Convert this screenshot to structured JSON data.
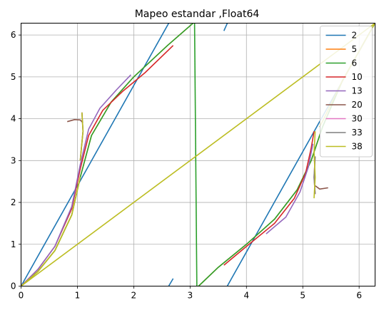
{
  "chart_data": {
    "type": "line",
    "title": "Mapeo estandar  ,Float64",
    "xlabel": "",
    "ylabel": "",
    "xlim": [
      0,
      6.2832
    ],
    "ylim": [
      0,
      6.2832
    ],
    "xticks": [
      "0",
      "1",
      "2",
      "3",
      "4",
      "5",
      "6"
    ],
    "yticks": [
      "0",
      "1",
      "2",
      "3",
      "4",
      "5",
      "6"
    ],
    "grid": true,
    "legend_position": "upper right",
    "series": [
      {
        "name": "2",
        "color": "#1f77b4",
        "segments": [
          [
            [
              0,
              0
            ],
            [
              2.62,
              6.28
            ]
          ],
          [
            [
              2.62,
              0
            ],
            [
              2.7,
              0.18
            ]
          ],
          [
            [
              3.6,
              6.1
            ],
            [
              3.66,
              6.28
            ]
          ],
          [
            [
              3.66,
              0
            ],
            [
              6.28,
              6.28
            ]
          ]
        ]
      },
      {
        "name": "5",
        "color": "#ff7f0e",
        "segments": [
          [
            [
              0,
              0
            ],
            [
              0.3,
              0.35
            ],
            [
              0.6,
              0.85
            ],
            [
              0.9,
              1.7
            ],
            [
              1.05,
              2.6
            ],
            [
              1.25,
              3.6
            ],
            [
              1.6,
              4.4
            ],
            [
              2.0,
              5.0
            ],
            [
              2.6,
              5.75
            ],
            [
              3.05,
              6.28
            ]
          ],
          [
            [
              3.15,
              0
            ],
            [
              3.5,
              0.45
            ],
            [
              4.0,
              1.0
            ],
            [
              4.5,
              1.6
            ],
            [
              4.9,
              2.3
            ],
            [
              5.15,
              3.0
            ],
            [
              5.35,
              3.8
            ],
            [
              5.7,
              4.9
            ],
            [
              6.28,
              6.28
            ]
          ]
        ]
      },
      {
        "name": "6",
        "color": "#2ca02c",
        "segments": [
          [
            [
              0,
              0
            ],
            [
              0.3,
              0.35
            ],
            [
              0.6,
              0.85
            ],
            [
              0.9,
              1.7
            ],
            [
              1.05,
              2.6
            ],
            [
              1.25,
              3.6
            ],
            [
              1.6,
              4.4
            ],
            [
              2.0,
              5.0
            ],
            [
              2.6,
              5.75
            ],
            [
              3.05,
              6.28
            ]
          ],
          [
            [
              3.08,
              6.28
            ],
            [
              3.12,
              0
            ]
          ],
          [
            [
              3.15,
              0
            ],
            [
              3.5,
              0.45
            ],
            [
              4.0,
              1.0
            ],
            [
              4.5,
              1.6
            ],
            [
              4.9,
              2.3
            ],
            [
              5.15,
              3.0
            ],
            [
              5.35,
              3.8
            ],
            [
              5.7,
              4.9
            ],
            [
              6.28,
              6.28
            ]
          ]
        ]
      },
      {
        "name": "10",
        "color": "#d62728",
        "segments": [
          [
            [
              0,
              0
            ],
            [
              0.3,
              0.4
            ],
            [
              0.6,
              0.95
            ],
            [
              0.9,
              1.85
            ],
            [
              1.05,
              2.8
            ],
            [
              1.2,
              3.6
            ],
            [
              1.45,
              4.2
            ],
            [
              1.8,
              4.65
            ],
            [
              2.2,
              5.1
            ],
            [
              2.7,
              5.75
            ]
          ],
          [
            [
              3.6,
              0.5
            ],
            [
              4.0,
              0.95
            ],
            [
              4.5,
              1.5
            ],
            [
              4.85,
              2.1
            ],
            [
              5.05,
              2.7
            ],
            [
              5.15,
              3.3
            ],
            [
              5.2,
              3.7
            ]
          ]
        ]
      },
      {
        "name": "13",
        "color": "#9467bd",
        "segments": [
          [
            [
              0,
              0
            ],
            [
              0.3,
              0.4
            ],
            [
              0.6,
              0.95
            ],
            [
              0.9,
              1.9
            ],
            [
              1.05,
              2.9
            ],
            [
              1.2,
              3.75
            ],
            [
              1.4,
              4.25
            ],
            [
              1.7,
              4.7
            ],
            [
              1.95,
              5.05
            ]
          ],
          [
            [
              4.35,
              1.25
            ],
            [
              4.7,
              1.65
            ],
            [
              4.95,
              2.25
            ],
            [
              5.1,
              2.85
            ],
            [
              5.18,
              3.4
            ]
          ]
        ]
      },
      {
        "name": "20",
        "color": "#8c564b",
        "segments": [
          [
            [
              0.82,
              3.93
            ],
            [
              0.95,
              3.98
            ],
            [
              1.05,
              3.97
            ],
            [
              1.1,
              3.9
            ]
          ],
          [
            [
              5.22,
              2.4
            ],
            [
              5.3,
              2.32
            ],
            [
              5.45,
              2.35
            ]
          ]
        ]
      },
      {
        "name": "30",
        "color": "#e377c2",
        "segments": [
          [
            [
              1.08,
              4.15
            ],
            [
              1.1,
              3.7
            ],
            [
              1.05,
              3.0
            ]
          ],
          [
            [
              5.22,
              2.2
            ],
            [
              5.2,
              2.6
            ],
            [
              5.22,
              3.1
            ]
          ]
        ]
      },
      {
        "name": "33",
        "color": "#7f7f7f",
        "segments": [
          [
            [
              1.08,
              4.15
            ],
            [
              1.1,
              3.7
            ],
            [
              1.05,
              3.0
            ]
          ],
          [
            [
              5.22,
              2.2
            ],
            [
              5.2,
              2.6
            ],
            [
              5.22,
              3.1
            ]
          ]
        ]
      },
      {
        "name": "38",
        "color": "#bcbd22",
        "segments": [
          [
            [
              0,
              0
            ],
            [
              6.28,
              6.28
            ]
          ],
          [
            [
              0,
              0
            ],
            [
              0.3,
              0.35
            ],
            [
              0.6,
              0.85
            ],
            [
              0.9,
              1.7
            ],
            [
              1.05,
              2.6
            ]
          ],
          [
            [
              1.08,
              4.15
            ],
            [
              1.1,
              3.7
            ],
            [
              1.05,
              3.0
            ]
          ],
          [
            [
              5.2,
              2.1
            ],
            [
              5.22,
              2.6
            ],
            [
              5.2,
              3.2
            ],
            [
              5.22,
              3.7
            ]
          ],
          [
            [
              5.3,
              3.8
            ],
            [
              5.7,
              4.9
            ],
            [
              6.28,
              6.28
            ]
          ]
        ]
      }
    ]
  }
}
